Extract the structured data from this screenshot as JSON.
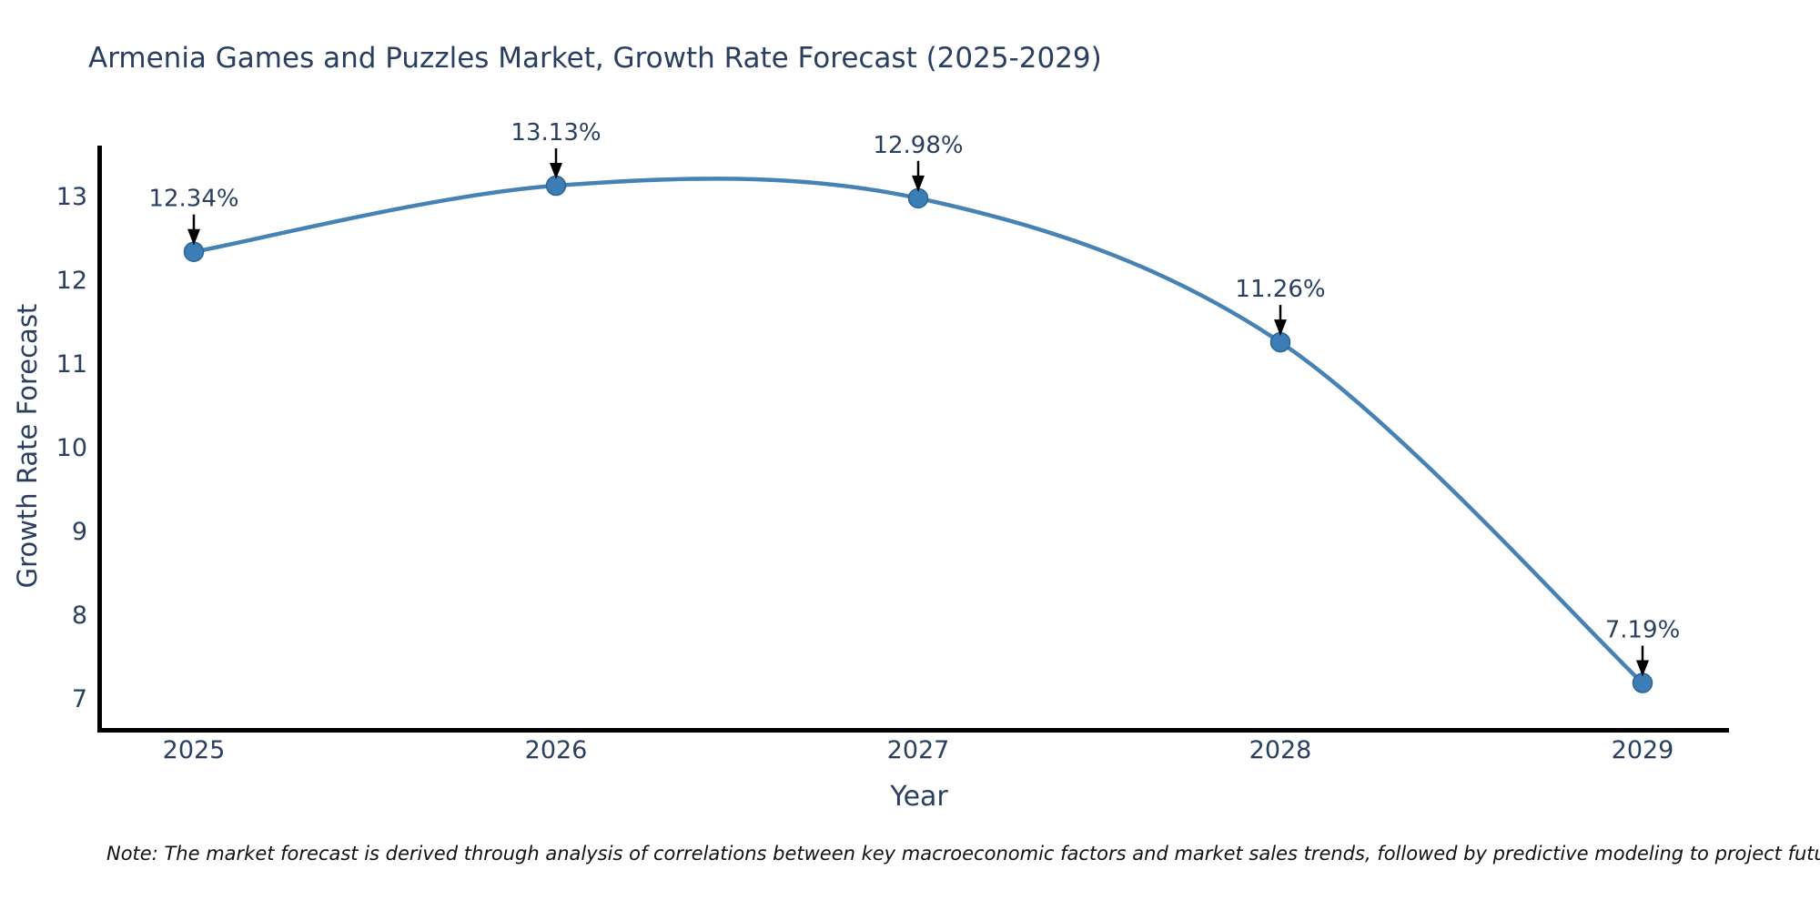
{
  "chart_data": {
    "type": "line",
    "title": "Armenia Games and Puzzles Market, Growth Rate Forecast (2025-2029)",
    "xlabel": "Year",
    "ylabel": "Growth Rate Forecast",
    "x": [
      2025,
      2026,
      2027,
      2028,
      2029
    ],
    "values": [
      12.34,
      13.13,
      12.98,
      11.26,
      7.19
    ],
    "point_labels": [
      "12.34%",
      "13.13%",
      "12.98%",
      "11.26%",
      "7.19%"
    ],
    "x_tick_labels": [
      "2025",
      "2026",
      "2027",
      "2028",
      "2029"
    ],
    "y_tick_labels": [
      "7",
      "8",
      "9",
      "10",
      "11",
      "12",
      "13"
    ],
    "y_ticks": [
      7,
      8,
      9,
      10,
      11,
      12,
      13
    ],
    "ylim": [
      6.65,
      13.61
    ],
    "grid": false,
    "legend": false,
    "line_shape": "spline",
    "annotation_style": "label-above-with-down-arrow",
    "colors": {
      "line": "#4682b4",
      "marker": "#3c7db6",
      "marker_edge": "#2c6496",
      "arrow": "#000000",
      "text": "#2a3f5f",
      "axis": "#000000",
      "background": "#ffffff"
    }
  },
  "note": {
    "text": "Note: The market forecast is derived through analysis of correlations between key macroeconomic factors and market sales trends, followed by predictive modeling to project future sales"
  }
}
